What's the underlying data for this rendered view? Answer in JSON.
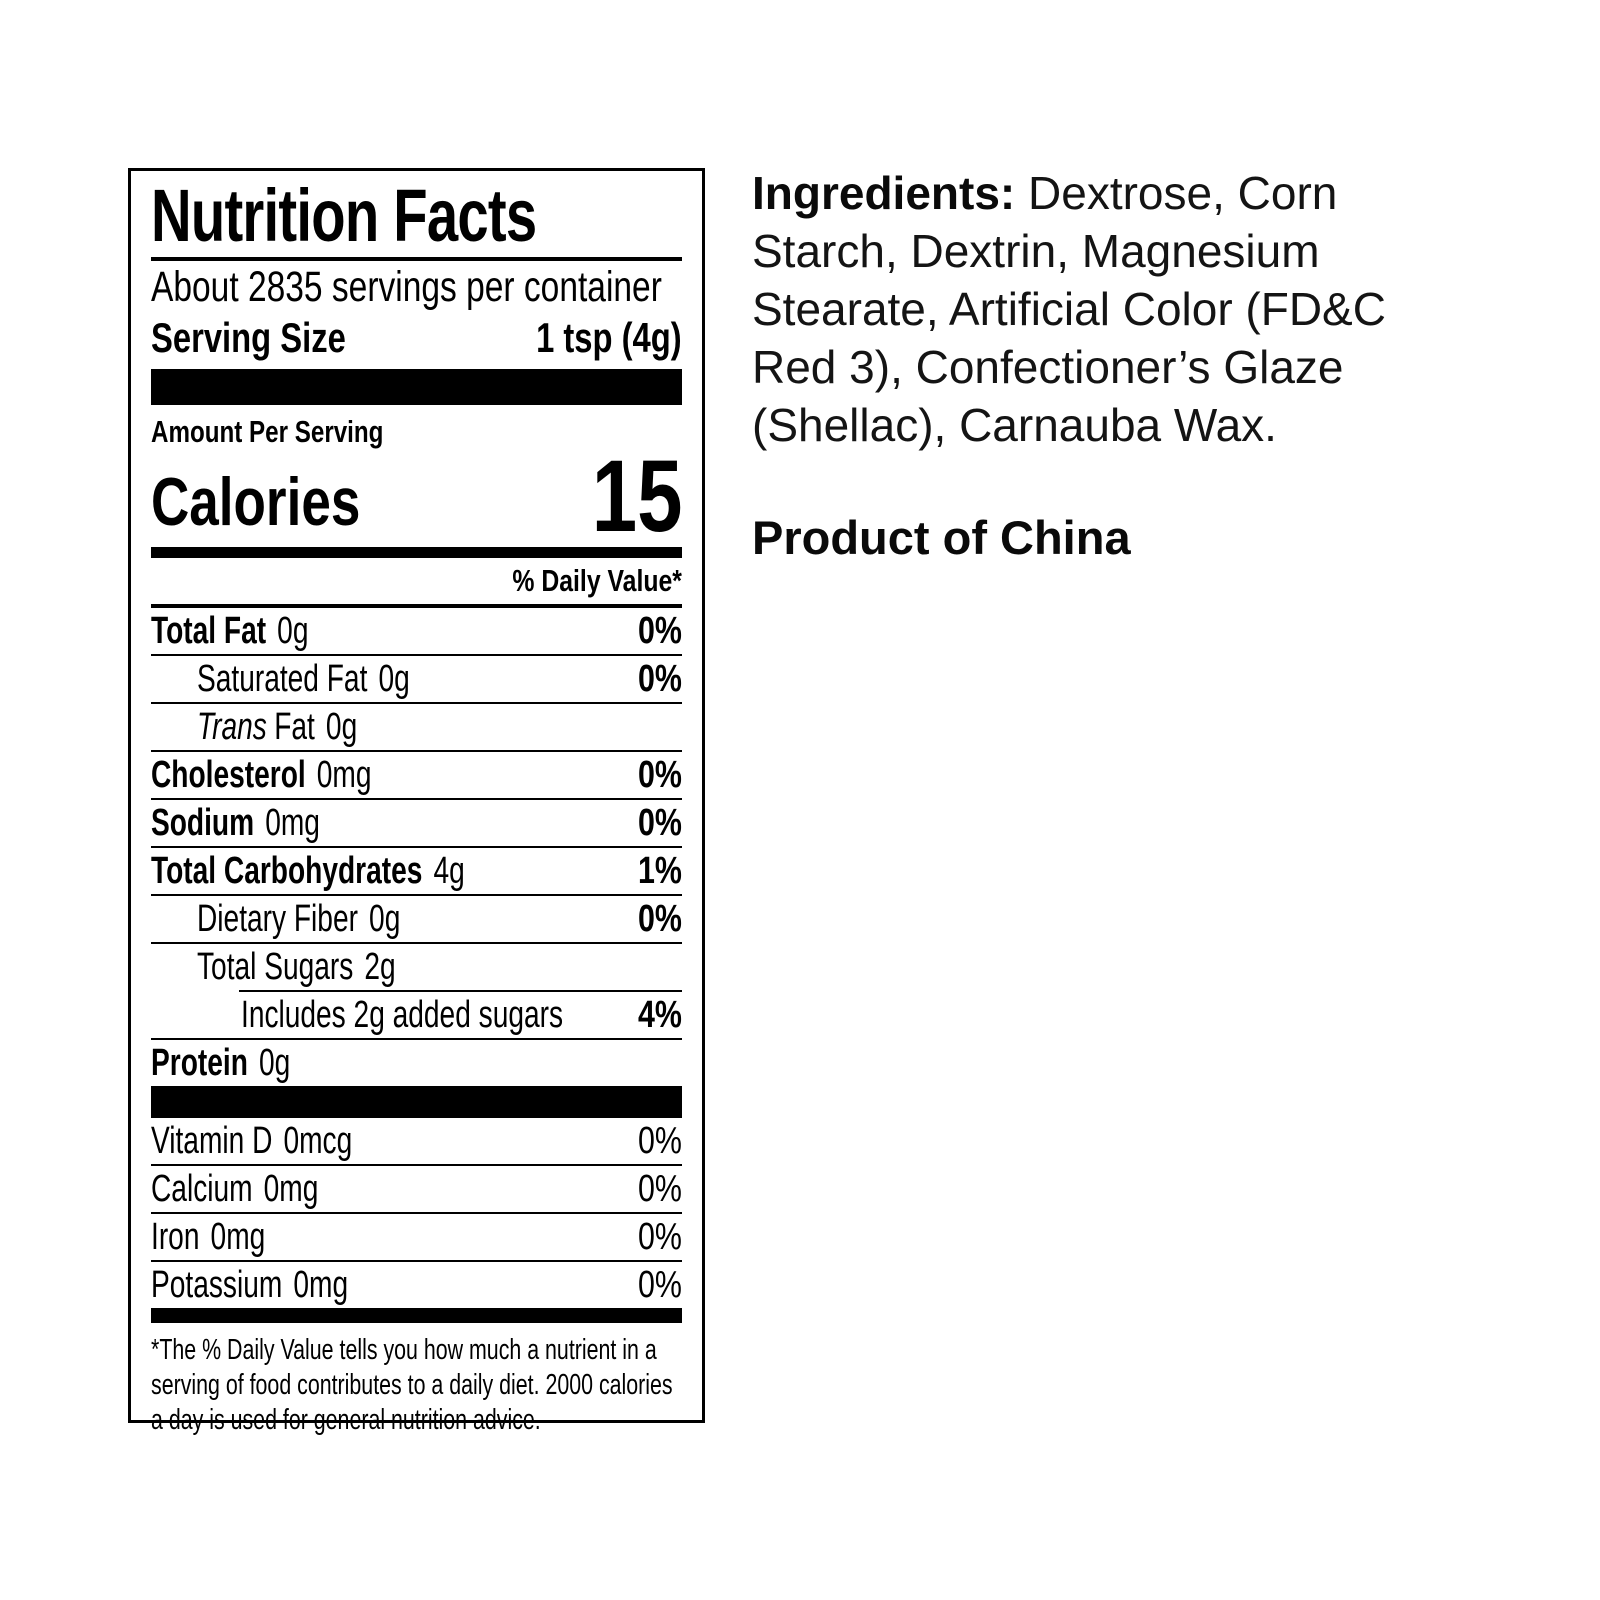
{
  "colors": {
    "text": "#000000",
    "background": "#ffffff"
  },
  "nutrition_label": {
    "title": "Nutrition Facts",
    "servings_per_container": "About 2835 servings per container",
    "serving_size_label": "Serving Size",
    "serving_size_value": "1 tsp (4g)",
    "amount_per_serving": "Amount Per Serving",
    "calories_label": "Calories",
    "calories_value": "15",
    "daily_value_header": "% Daily Value*",
    "rows": [
      {
        "name": "Total Fat",
        "amount": "0g",
        "pct": "0%"
      },
      {
        "name": "Saturated Fat",
        "amount": "0g",
        "pct": "0%"
      },
      {
        "name_italic": "Trans",
        "name_rest": "Fat",
        "amount": "0g",
        "pct": ""
      },
      {
        "name": "Cholesterol",
        "amount": "0mg",
        "pct": "0%"
      },
      {
        "name": "Sodium",
        "amount": "0mg",
        "pct": "0%"
      },
      {
        "name": "Total Carbohydrates",
        "amount": "4g",
        "pct": "1%"
      },
      {
        "name": "Dietary Fiber",
        "amount": "0g",
        "pct": "0%"
      },
      {
        "name": "Total Sugars",
        "amount": "2g",
        "pct": ""
      },
      {
        "name": "Includes 2g added sugars",
        "amount": "",
        "pct": "4%"
      },
      {
        "name": "Protein",
        "amount": "0g",
        "pct": ""
      }
    ],
    "vitamins": [
      {
        "name": "Vitamin D",
        "amount": "0mcg",
        "pct": "0%"
      },
      {
        "name": "Calcium",
        "amount": "0mg",
        "pct": "0%"
      },
      {
        "name": "Iron",
        "amount": "0mg",
        "pct": "0%"
      },
      {
        "name": "Potassium",
        "amount": "0mg",
        "pct": "0%"
      }
    ],
    "footnote": "*The % Daily Value tells you how much a nutrient in a serving of food contributes to a daily diet. 2000 calories a day is used for general nutrition advice."
  },
  "ingredients_panel": {
    "heading": "Ingredients:",
    "text": " Dextrose, Corn Starch, Dextrin, Magnesium Stearate, Artificial Color (FD&C Red 3), Confectioner’s Glaze (Shellac), Carnauba Wax.",
    "origin": "Product of China"
  }
}
